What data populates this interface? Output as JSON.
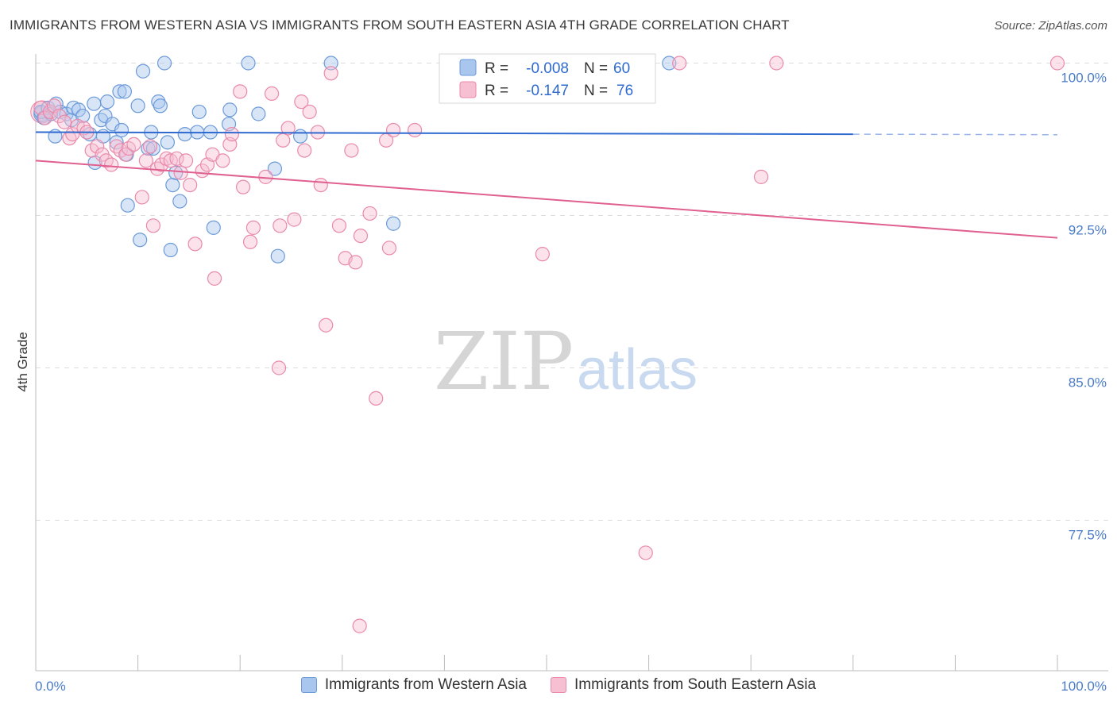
{
  "title": "IMMIGRANTS FROM WESTERN ASIA VS IMMIGRANTS FROM SOUTH EASTERN ASIA 4TH GRADE CORRELATION CHART",
  "source": "Source: ZipAtlas.com",
  "watermark": {
    "zip": "ZIP",
    "atlas": "atlas"
  },
  "legend_box": {
    "r_label": "R =",
    "n_label": "N =",
    "rows": [
      {
        "r": "-0.008",
        "n": "60"
      },
      {
        "r": "-0.147",
        "n": "76"
      }
    ]
  },
  "colors": {
    "blue_fill": "#a9c6ee",
    "blue_stroke": "#6b9ad9",
    "blue_line": "#2f6ad0",
    "pink_fill": "#f6bfd2",
    "pink_stroke": "#e98aab",
    "pink_line": "#e0608f",
    "tick_text": "#4a7cc9",
    "grid": "#dddddd"
  },
  "chart_data": {
    "type": "scatter",
    "xlabel": "",
    "ylabel": "4th Grade",
    "xlim": [
      0,
      100
    ],
    "ylim": [
      70.5,
      101.5
    ],
    "x_tick_labels": [
      "0.0%",
      "100.0%"
    ],
    "y_ticks": [
      100.0,
      92.5,
      85.0,
      77.5
    ],
    "y_tick_labels": [
      "100.0%",
      "92.5%",
      "85.0%",
      "77.5%"
    ],
    "grid": true,
    "legend_position": "top-center",
    "series": [
      {
        "name": "Immigrants from Western Asia",
        "color": "#a9c6ee",
        "r": -0.008,
        "n": 60,
        "trend": {
          "x": [
            0,
            80
          ],
          "y": [
            96.6,
            96.5
          ],
          "dashed_extension_to": 100
        },
        "points": [
          [
            0.5,
            97.6
          ],
          [
            0.8,
            97.3
          ],
          [
            1.2,
            97.8
          ],
          [
            1.5,
            97.5
          ],
          [
            2.0,
            98.0
          ],
          [
            1.9,
            96.4
          ],
          [
            2.4,
            97.6
          ],
          [
            3.0,
            97.5
          ],
          [
            3.5,
            97.2
          ],
          [
            3.7,
            97.8
          ],
          [
            4.2,
            97.7
          ],
          [
            4.6,
            97.4
          ],
          [
            5.3,
            96.5
          ],
          [
            5.7,
            98.0
          ],
          [
            5.8,
            95.1
          ],
          [
            6.4,
            97.2
          ],
          [
            6.6,
            96.4
          ],
          [
            6.8,
            97.4
          ],
          [
            7.0,
            98.1
          ],
          [
            7.5,
            97.0
          ],
          [
            7.9,
            96.1
          ],
          [
            8.2,
            98.6
          ],
          [
            8.4,
            96.7
          ],
          [
            8.7,
            98.6
          ],
          [
            8.9,
            95.5
          ],
          [
            9.0,
            93.0
          ],
          [
            10.0,
            97.9
          ],
          [
            10.2,
            91.3
          ],
          [
            10.5,
            99.6
          ],
          [
            11.0,
            95.8
          ],
          [
            11.3,
            96.6
          ],
          [
            11.5,
            95.8
          ],
          [
            12.0,
            98.1
          ],
          [
            12.2,
            97.9
          ],
          [
            12.6,
            100.0
          ],
          [
            12.9,
            96.1
          ],
          [
            13.2,
            90.8
          ],
          [
            13.4,
            94.0
          ],
          [
            13.7,
            94.6
          ],
          [
            14.1,
            93.2
          ],
          [
            14.6,
            96.5
          ],
          [
            15.8,
            96.6
          ],
          [
            16.0,
            97.6
          ],
          [
            17.1,
            96.6
          ],
          [
            17.4,
            91.9
          ],
          [
            18.9,
            97.0
          ],
          [
            19.0,
            97.7
          ],
          [
            20.8,
            100.0
          ],
          [
            21.8,
            97.5
          ],
          [
            23.4,
            94.8
          ],
          [
            23.7,
            90.5
          ],
          [
            25.9,
            96.4
          ],
          [
            28.9,
            100.0
          ],
          [
            35.0,
            92.1
          ],
          [
            62.0,
            100.0
          ]
        ]
      },
      {
        "name": "Immigrants from South Eastern Asia",
        "color": "#f6bfd2",
        "r": -0.147,
        "n": 76,
        "trend": {
          "x": [
            0,
            100
          ],
          "y": [
            95.2,
            91.4
          ]
        },
        "points": [
          [
            0.5,
            97.8
          ],
          [
            0.9,
            97.3
          ],
          [
            1.4,
            97.6
          ],
          [
            1.8,
            97.9
          ],
          [
            2.3,
            97.4
          ],
          [
            2.8,
            97.1
          ],
          [
            3.3,
            96.3
          ],
          [
            3.6,
            96.5
          ],
          [
            4.1,
            96.9
          ],
          [
            4.7,
            96.8
          ],
          [
            5.0,
            96.6
          ],
          [
            5.5,
            95.7
          ],
          [
            6.0,
            95.9
          ],
          [
            6.5,
            95.5
          ],
          [
            6.9,
            95.2
          ],
          [
            7.4,
            95.0
          ],
          [
            7.9,
            95.9
          ],
          [
            8.3,
            95.7
          ],
          [
            8.8,
            95.5
          ],
          [
            9.1,
            95.8
          ],
          [
            9.6,
            96.0
          ],
          [
            10.4,
            93.4
          ],
          [
            10.8,
            95.2
          ],
          [
            11.2,
            95.9
          ],
          [
            11.5,
            92.0
          ],
          [
            11.9,
            94.8
          ],
          [
            12.3,
            95.0
          ],
          [
            12.8,
            95.3
          ],
          [
            13.2,
            95.2
          ],
          [
            13.8,
            95.3
          ],
          [
            14.2,
            94.6
          ],
          [
            14.7,
            95.2
          ],
          [
            15.1,
            94.0
          ],
          [
            15.6,
            91.1
          ],
          [
            16.3,
            94.7
          ],
          [
            16.8,
            95.0
          ],
          [
            17.3,
            95.5
          ],
          [
            17.5,
            89.4
          ],
          [
            18.3,
            95.2
          ],
          [
            19.0,
            96.0
          ],
          [
            19.2,
            96.5
          ],
          [
            20.0,
            98.6
          ],
          [
            20.3,
            93.9
          ],
          [
            21.0,
            91.2
          ],
          [
            21.3,
            91.9
          ],
          [
            22.5,
            94.4
          ],
          [
            23.1,
            98.5
          ],
          [
            23.9,
            92.0
          ],
          [
            24.2,
            96.2
          ],
          [
            24.7,
            96.8
          ],
          [
            25.3,
            92.3
          ],
          [
            26.0,
            98.1
          ],
          [
            26.3,
            95.7
          ],
          [
            26.8,
            97.6
          ],
          [
            27.6,
            96.6
          ],
          [
            27.9,
            94.0
          ],
          [
            28.4,
            87.1
          ],
          [
            28.9,
            99.5
          ],
          [
            29.7,
            92.0
          ],
          [
            30.3,
            90.4
          ],
          [
            30.9,
            95.7
          ],
          [
            31.3,
            90.2
          ],
          [
            31.8,
            91.5
          ],
          [
            32.7,
            92.6
          ],
          [
            33.3,
            83.5
          ],
          [
            34.3,
            96.2
          ],
          [
            34.6,
            90.9
          ],
          [
            35.0,
            96.7
          ],
          [
            37.1,
            96.7
          ],
          [
            23.8,
            85.0
          ],
          [
            49.6,
            90.6
          ],
          [
            59.7,
            75.9
          ],
          [
            63.0,
            100.0
          ],
          [
            71.0,
            94.4
          ],
          [
            72.5,
            100.0
          ],
          [
            31.7,
            72.3
          ],
          [
            100.0,
            100.0
          ]
        ]
      }
    ]
  }
}
